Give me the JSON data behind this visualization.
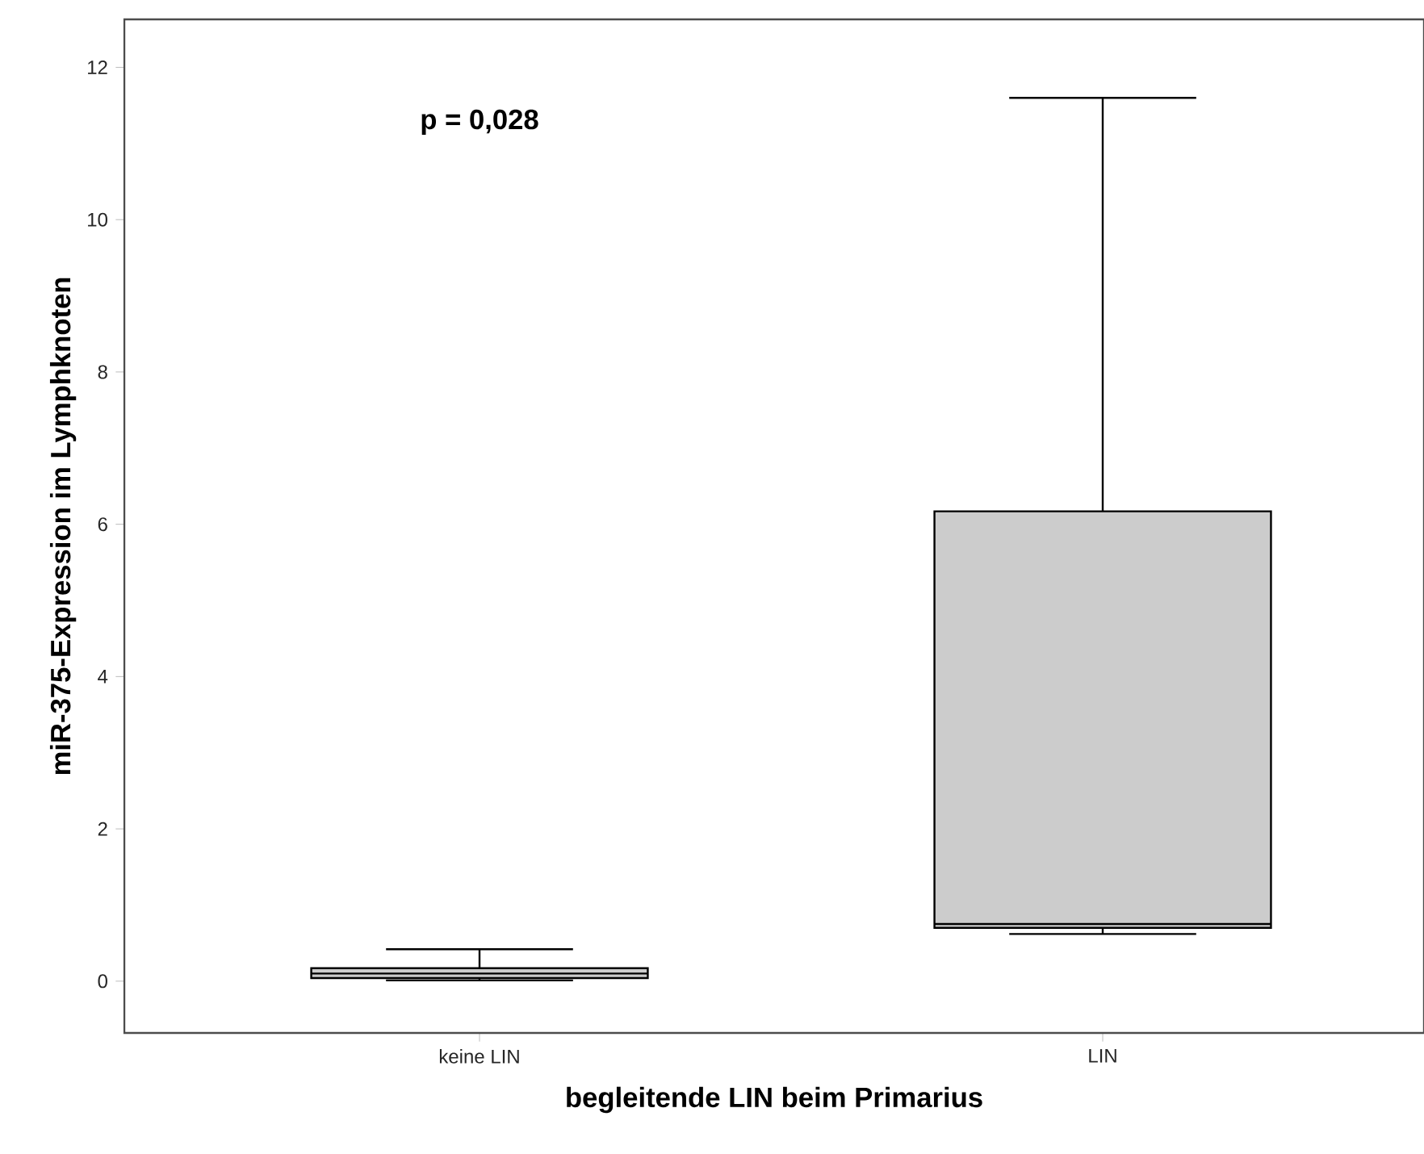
{
  "chart_data": {
    "type": "box",
    "xlabel": "begleitende LIN beim Primarius",
    "ylabel": "miR-375-Expression im Lymphknoten",
    "categories": [
      "keine LIN",
      "LIN"
    ],
    "annotations": [
      "p = 0,028"
    ],
    "ylim": [
      -0.68,
      12.63
    ],
    "yticks": [
      0,
      2,
      4,
      6,
      8,
      10,
      12
    ],
    "grid": false,
    "series": [
      {
        "color": "#cccccc",
        "boxes": [
          {
            "low": 0.01,
            "q1": 0.04,
            "median": 0.1,
            "q3": 0.17,
            "high": 0.42
          },
          {
            "low": 0.62,
            "q1": 0.7,
            "median": 0.75,
            "q3": 6.17,
            "high": 11.6
          }
        ]
      }
    ]
  }
}
